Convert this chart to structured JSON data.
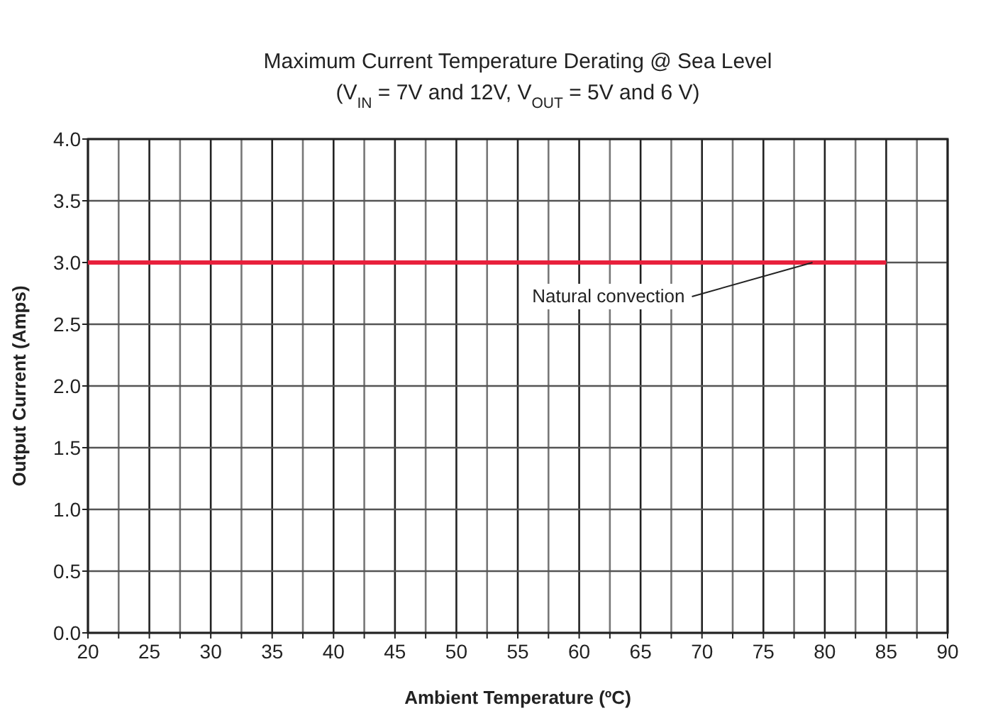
{
  "chart_data": {
    "type": "line",
    "title": "Maximum Current Temperature Derating @ Sea Level",
    "subtitle": "(V$_{IN}$ = 7V and 12V, V$_{OUT}$ = 5V and 6 V)",
    "xlabel": "Ambient Temperature (ºC)",
    "ylabel": "Output Current (Amps)",
    "x": [
      20,
      85
    ],
    "series": [
      {
        "color": "#e8203c",
        "values": [
          3,
          3
        ]
      }
    ],
    "xlim": [
      20,
      90
    ],
    "ylim": [
      0,
      4
    ],
    "xticks": [
      20,
      {
        "value": 22.5,
        "label": null
      },
      25,
      {
        "value": 27.5,
        "label": null
      },
      30,
      {
        "value": 32.5,
        "label": null
      },
      35,
      {
        "value": 37.5,
        "label": null
      },
      40,
      {
        "value": 42.5,
        "label": null
      },
      45,
      {
        "value": 47.5,
        "label": null
      },
      50,
      {
        "value": 52.5,
        "label": null
      },
      55,
      {
        "value": 57.5,
        "label": null
      },
      60,
      {
        "value": 62.5,
        "label": null
      },
      65,
      {
        "value": 67.5,
        "label": null
      },
      70,
      {
        "value": 72.5,
        "label": null
      },
      75,
      {
        "value": 77.5,
        "label": null
      },
      80,
      {
        "value": 82.5,
        "label": null
      },
      85,
      {
        "value": 87.5,
        "label": null
      },
      90
    ],
    "yticks": [
      {
        "value": 0,
        "label": "0.0"
      },
      0.5,
      {
        "value": 1,
        "label": "1.0"
      },
      1.5,
      {
        "value": 2,
        "label": "2.0"
      },
      2.5,
      {
        "value": 3,
        "label": "3.0"
      },
      3.5,
      {
        "value": 4,
        "label": "4.0"
      }
    ],
    "grid": true,
    "marker": "none",
    "line_style": "solid",
    "annotations": [
      {
        "text": "Natural convection",
        "x": 79,
        "y": 3
      }
    ]
  }
}
